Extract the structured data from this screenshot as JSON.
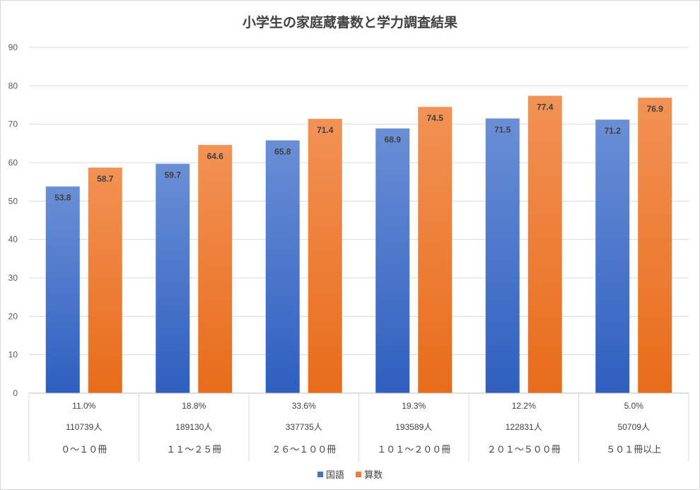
{
  "chart_data": {
    "type": "bar",
    "title": "小学生の家庭蔵書数と学力調査結果",
    "categories": [
      "０～１０冊",
      "１１～２５冊",
      "２６～１００冊",
      "１０１～２００冊",
      "２０１～５００冊",
      "５０１冊以上"
    ],
    "sub_labels_percent": [
      "11.0%",
      "18.8%",
      "33.6%",
      "19.3%",
      "12.2%",
      "5.0%"
    ],
    "sub_labels_count": [
      "110739人",
      "189130人",
      "337735人",
      "193589人",
      "122831人",
      "50709人"
    ],
    "series": [
      {
        "name": "国語",
        "values": [
          53.8,
          59.7,
          65.8,
          68.9,
          71.5,
          71.2
        ],
        "color": "#4472c4"
      },
      {
        "name": "算数",
        "values": [
          58.7,
          64.6,
          71.4,
          74.5,
          77.4,
          76.9
        ],
        "color": "#ed7d31"
      }
    ],
    "ylim": [
      0,
      90
    ],
    "yticks": [
      0,
      10,
      20,
      30,
      40,
      50,
      60,
      70,
      80,
      90
    ],
    "grid": true,
    "legend_position": "bottom"
  }
}
